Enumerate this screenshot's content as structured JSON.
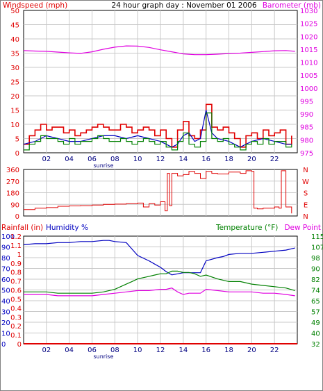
{
  "title": "24 hour graph day : November 01 2006",
  "colors": {
    "wind": "#e00000",
    "gust": "#0000c0",
    "avg": "#008000",
    "baro": "#e000e0",
    "wdir": "#e00000",
    "rain": "#e00000",
    "humidity": "#0000c0",
    "temp": "#008000",
    "dew": "#e000e0",
    "grid": "#c8c8c8"
  },
  "chart_data": [
    {
      "type": "line",
      "left_label": "Windspeed (mph)",
      "right_label": "Barometer (mb)",
      "x_ticks": [
        "02",
        "04",
        "06",
        "08",
        "10",
        "12",
        "14",
        "16",
        "18",
        "20",
        "22"
      ],
      "x_extra": "sunrise",
      "y_left": {
        "range": [
          0,
          50
        ],
        "ticks": [
          0,
          5,
          10,
          15,
          20,
          25,
          30,
          35,
          40,
          45,
          50
        ]
      },
      "y_right": {
        "range": [
          975,
          1030
        ],
        "ticks": [
          975,
          980,
          985,
          990,
          995,
          1000,
          1005,
          1010,
          1015,
          1020,
          1025,
          1030
        ]
      },
      "series": [
        {
          "key": "wind",
          "axis": "left",
          "step": true,
          "x": [
            0,
            0.5,
            1,
            1.5,
            2,
            2.5,
            3,
            3.5,
            4,
            4.5,
            5,
            5.5,
            6,
            6.5,
            7,
            7.5,
            8,
            8.5,
            9,
            9.5,
            10,
            10.5,
            11,
            11.5,
            12,
            12.5,
            13,
            13.5,
            14,
            14.5,
            15,
            15.5,
            16,
            16.5,
            17,
            17.5,
            18,
            18.5,
            19,
            19.5,
            20,
            20.5,
            21,
            21.5,
            22,
            22.5,
            23,
            23.5
          ],
          "values": [
            3,
            6,
            8,
            10,
            8,
            9,
            9,
            7,
            8,
            6,
            7,
            8,
            9,
            10,
            9,
            8,
            8,
            10,
            9,
            7,
            8,
            9,
            8,
            6,
            8,
            5,
            2,
            8,
            11,
            6,
            5,
            8,
            17,
            9,
            8,
            9,
            7,
            5,
            2,
            6,
            7,
            5,
            8,
            6,
            7,
            8,
            3,
            6
          ]
        },
        {
          "key": "gust",
          "axis": "left",
          "step": false,
          "x": [
            0,
            1,
            2,
            3,
            4,
            5,
            6,
            7,
            8,
            9,
            10,
            11,
            12,
            13,
            13.5,
            14,
            14.5,
            15,
            15.5,
            16,
            16.5,
            17,
            18,
            19,
            20,
            21,
            22,
            23,
            23.5
          ],
          "values": [
            3,
            4,
            6,
            5,
            4,
            4,
            5,
            6,
            6,
            5,
            6,
            5,
            4,
            2,
            3,
            6,
            7,
            4,
            5,
            15,
            7,
            5,
            4,
            2,
            4,
            5,
            4,
            3,
            3
          ]
        },
        {
          "key": "avg",
          "axis": "left",
          "step": true,
          "x": [
            0,
            0.5,
            1,
            1.5,
            2,
            2.5,
            3,
            3.5,
            4,
            4.5,
            5,
            5.5,
            6,
            6.5,
            7,
            7.5,
            8,
            8.5,
            9,
            9.5,
            10,
            10.5,
            11,
            11.5,
            12,
            12.5,
            13,
            13.5,
            14,
            14.5,
            15,
            15.5,
            16,
            16.5,
            17,
            17.5,
            18,
            18.5,
            19,
            19.5,
            20,
            20.5,
            21,
            21.5,
            22,
            22.5,
            23,
            23.5
          ],
          "values": [
            1,
            3,
            4,
            6,
            5,
            5,
            4,
            3,
            5,
            3,
            4,
            4,
            5,
            6,
            5,
            4,
            4,
            5,
            4,
            3,
            4,
            5,
            4,
            3,
            4,
            2,
            1,
            4,
            7,
            3,
            2,
            4,
            14,
            5,
            4,
            5,
            3,
            2,
            1,
            3,
            4,
            3,
            5,
            3,
            4,
            4,
            2,
            3
          ]
        },
        {
          "key": "baro",
          "axis": "right",
          "step": false,
          "x": [
            0,
            1,
            2,
            3,
            4,
            5,
            6,
            7,
            8,
            9,
            10,
            11,
            12,
            13,
            14,
            15,
            16,
            17,
            18,
            19,
            20,
            21,
            22,
            23,
            23.8
          ],
          "values": [
            1014.5,
            1014.3,
            1014.2,
            1013.9,
            1013.6,
            1013.4,
            1014.0,
            1015.0,
            1015.8,
            1016.3,
            1016.2,
            1015.7,
            1014.8,
            1014.0,
            1013.2,
            1012.9,
            1012.9,
            1013.1,
            1013.3,
            1013.5,
            1013.8,
            1014.1,
            1014.4,
            1014.5,
            1014.2
          ]
        }
      ]
    },
    {
      "type": "line",
      "y_left": {
        "range": [
          0,
          360
        ],
        "ticks": [
          0,
          90,
          180,
          270,
          360
        ]
      },
      "y_right_labels": [
        "N",
        "W",
        "S",
        "E",
        "N"
      ],
      "series": [
        {
          "key": "wdir",
          "axis": "left",
          "step": true,
          "x": [
            0,
            1,
            2,
            3,
            4,
            5,
            6,
            7,
            8,
            9,
            10,
            10.5,
            11,
            11.5,
            12,
            12.4,
            12.6,
            12.8,
            13,
            13.5,
            14,
            14.5,
            15,
            15.5,
            16,
            16.5,
            17,
            18,
            19,
            19.5,
            20,
            20.2,
            20.5,
            21,
            22,
            22.4,
            22.6,
            23,
            23.5
          ],
          "values": [
            50,
            60,
            65,
            75,
            78,
            80,
            85,
            90,
            92,
            95,
            100,
            70,
            95,
            85,
            110,
            40,
            330,
            80,
            330,
            310,
            320,
            345,
            330,
            290,
            345,
            330,
            325,
            340,
            330,
            350,
            345,
            60,
            55,
            60,
            70,
            60,
            350,
            70,
            20
          ]
        }
      ]
    },
    {
      "type": "line",
      "left_label_a": "Rainfall (in)",
      "left_label_b": "Humidity %",
      "right_label_a": "Temperature (°F)",
      "right_label_b": "Dew Point",
      "x_ticks": [
        "02",
        "04",
        "06",
        "08",
        "10",
        "12",
        "14",
        "16",
        "18",
        "20",
        "22"
      ],
      "x_extra": "sunrise",
      "y_rain": {
        "range": [
          0,
          1.2
        ],
        "ticks": [
          "0",
          "0.1",
          "0.2",
          "0.3",
          "0.4",
          "0.5",
          "0.6",
          "0.7",
          "0.8",
          "0.9",
          "1",
          "1.1",
          "1.2"
        ]
      },
      "y_humidity": {
        "range": [
          0,
          100
        ],
        "ticks": [
          0,
          10,
          20,
          30,
          40,
          50,
          60,
          70,
          80,
          90,
          100
        ]
      },
      "y_right": {
        "range": [
          32,
          115
        ],
        "ticks": [
          32,
          40,
          49,
          57,
          65,
          74,
          82,
          90,
          98,
          107,
          115
        ]
      },
      "series": [
        {
          "key": "humidity",
          "axis": "humidity",
          "step": false,
          "x": [
            0,
            1,
            2,
            3,
            4,
            5,
            6,
            7,
            7.5,
            8,
            9,
            9.5,
            10,
            11,
            11.5,
            12,
            12.5,
            13,
            14,
            15,
            15.5,
            16,
            17,
            17.5,
            18,
            19,
            20,
            21,
            22,
            23,
            23.8
          ],
          "values": [
            92,
            93,
            93,
            94,
            94,
            95,
            95,
            96,
            96,
            95,
            94,
            88,
            82,
            77,
            74,
            71,
            67,
            64,
            66,
            66,
            66,
            77,
            80,
            81,
            83,
            84,
            84,
            85,
            86,
            87,
            89
          ]
        },
        {
          "key": "temp",
          "axis": "right",
          "step": false,
          "x": [
            0,
            1,
            2,
            3,
            4,
            5,
            6,
            7,
            8,
            9,
            9.5,
            10,
            11,
            11.5,
            12,
            12.5,
            13,
            13.5,
            14,
            14.5,
            15,
            15.5,
            16,
            17,
            18,
            19,
            20,
            21,
            22,
            23,
            23.8
          ],
          "values": [
            72,
            72,
            72,
            71,
            71,
            71,
            71,
            72,
            74,
            78,
            80,
            82,
            84,
            85,
            86,
            86,
            88,
            88,
            87,
            87,
            86,
            84,
            85,
            82,
            80,
            80,
            78,
            77,
            76,
            75,
            73
          ]
        },
        {
          "key": "dew",
          "axis": "right",
          "step": false,
          "x": [
            0,
            1,
            2,
            3,
            4,
            5,
            6,
            7,
            8,
            9,
            10,
            11,
            12,
            12.5,
            13,
            13.5,
            14,
            14.5,
            15,
            15.5,
            16,
            17,
            18,
            19,
            20,
            21,
            22,
            23,
            23.8
          ],
          "values": [
            70,
            70,
            70,
            69,
            69,
            69,
            69,
            70,
            71,
            72,
            73,
            73,
            74,
            74,
            75,
            72,
            70,
            71,
            71,
            71,
            74,
            73,
            72,
            72,
            72,
            71,
            71,
            70,
            69
          ]
        },
        {
          "key": "rain",
          "axis": "rain",
          "step": false,
          "x": [
            0,
            24
          ],
          "values": [
            0,
            0
          ]
        }
      ]
    }
  ]
}
